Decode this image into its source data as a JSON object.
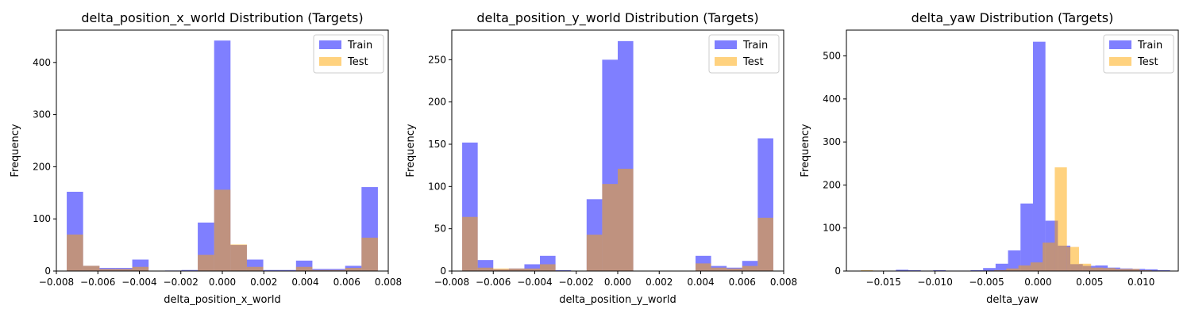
{
  "chart_data": [
    {
      "type": "histogram",
      "title": "delta_position_x_world Distribution (Targets)",
      "xlabel": "delta_position_x_world",
      "ylabel": "Frequency",
      "xlim": [
        -0.008,
        0.008
      ],
      "ylim": [
        0,
        462
      ],
      "xticks": [
        -0.008,
        -0.006,
        -0.004,
        -0.002,
        0.0,
        0.002,
        0.004,
        0.006,
        0.008
      ],
      "xtick_labels": [
        "−0.008",
        "−0.006",
        "−0.004",
        "−0.002",
        "0.000",
        "0.002",
        "0.004",
        "0.006",
        "0.008"
      ],
      "yticks": [
        0,
        100,
        200,
        300,
        400
      ],
      "ytick_labels": [
        "0",
        "100",
        "200",
        "300",
        "400"
      ],
      "legend": {
        "position": "top-right"
      },
      "series": [
        {
          "name": "Train",
          "color": "#0000ff",
          "range": [
            -0.0075,
            0.0075
          ],
          "counts": [
            152,
            10,
            6,
            6,
            22,
            0,
            1,
            2,
            93,
            442,
            50,
            22,
            2,
            2,
            20,
            4,
            4,
            10,
            161
          ]
        },
        {
          "name": "Test",
          "color": "#ffa500",
          "range": [
            -0.0075,
            0.0075
          ],
          "counts": [
            70,
            10,
            4,
            4,
            8,
            0,
            0,
            0,
            31,
            156,
            51,
            8,
            0,
            0,
            8,
            2,
            2,
            6,
            64
          ]
        }
      ]
    },
    {
      "type": "histogram",
      "title": "delta_position_y_world Distribution (Targets)",
      "xlabel": "delta_position_y_world",
      "ylabel": "Frequency",
      "xlim": [
        -0.008,
        0.008
      ],
      "ylim": [
        0,
        285
      ],
      "xticks": [
        -0.008,
        -0.006,
        -0.004,
        -0.002,
        0.0,
        0.002,
        0.004,
        0.006,
        0.008
      ],
      "xtick_labels": [
        "−0.008",
        "−0.006",
        "−0.004",
        "−0.002",
        "0.000",
        "0.002",
        "0.004",
        "0.006",
        "0.008"
      ],
      "yticks": [
        0,
        50,
        100,
        150,
        200,
        250
      ],
      "ytick_labels": [
        "0",
        "50",
        "100",
        "150",
        "200",
        "250"
      ],
      "legend": {
        "position": "top-right"
      },
      "series": [
        {
          "name": "Train",
          "color": "#0000ff",
          "range": [
            -0.0075,
            0.0075
          ],
          "counts": [
            152,
            13,
            2,
            3,
            8,
            18,
            1,
            0,
            85,
            250,
            272,
            0,
            0,
            0,
            0,
            18,
            6,
            4,
            12,
            157
          ]
        },
        {
          "name": "Test",
          "color": "#ffa500",
          "range": [
            -0.0075,
            0.0075
          ],
          "counts": [
            64,
            4,
            3,
            3,
            3,
            8,
            0,
            0,
            43,
            103,
            121,
            0,
            0,
            0,
            0,
            9,
            4,
            3,
            6,
            63
          ]
        }
      ]
    },
    {
      "type": "histogram",
      "title": "delta_yaw Distribution (Targets)",
      "xlabel": "delta_yaw",
      "ylabel": "Frequency",
      "xlim": [
        -0.0186,
        0.0136
      ],
      "ylim": [
        0,
        560
      ],
      "xticks": [
        -0.015,
        -0.01,
        -0.005,
        0.0,
        0.005,
        0.01
      ],
      "xtick_labels": [
        "−0.015",
        "−0.010",
        "−0.005",
        "0.000",
        "0.005",
        "0.010"
      ],
      "yticks": [
        0,
        100,
        200,
        300,
        400,
        500
      ],
      "ytick_labels": [
        "0",
        "100",
        "200",
        "300",
        "400",
        "500"
      ],
      "legend": {
        "position": "top-right"
      },
      "series": [
        {
          "name": "Train",
          "color": "#0000ff",
          "range": [
            -0.0138,
            0.0128
          ],
          "counts": [
            3,
            2,
            1,
            2,
            1,
            1,
            2,
            7,
            17,
            48,
            157,
            533,
            117,
            59,
            16,
            12,
            13,
            8,
            6,
            5,
            4,
            2
          ]
        },
        {
          "name": "Test",
          "color": "#ffa500",
          "range": [
            -0.0172,
            0.0122
          ],
          "counts": [
            2,
            1,
            0,
            0,
            0,
            0,
            1,
            0,
            0,
            0,
            1,
            2,
            6,
            13,
            20,
            66,
            241,
            56,
            17,
            8,
            7,
            5,
            5,
            2,
            1
          ]
        }
      ]
    }
  ]
}
